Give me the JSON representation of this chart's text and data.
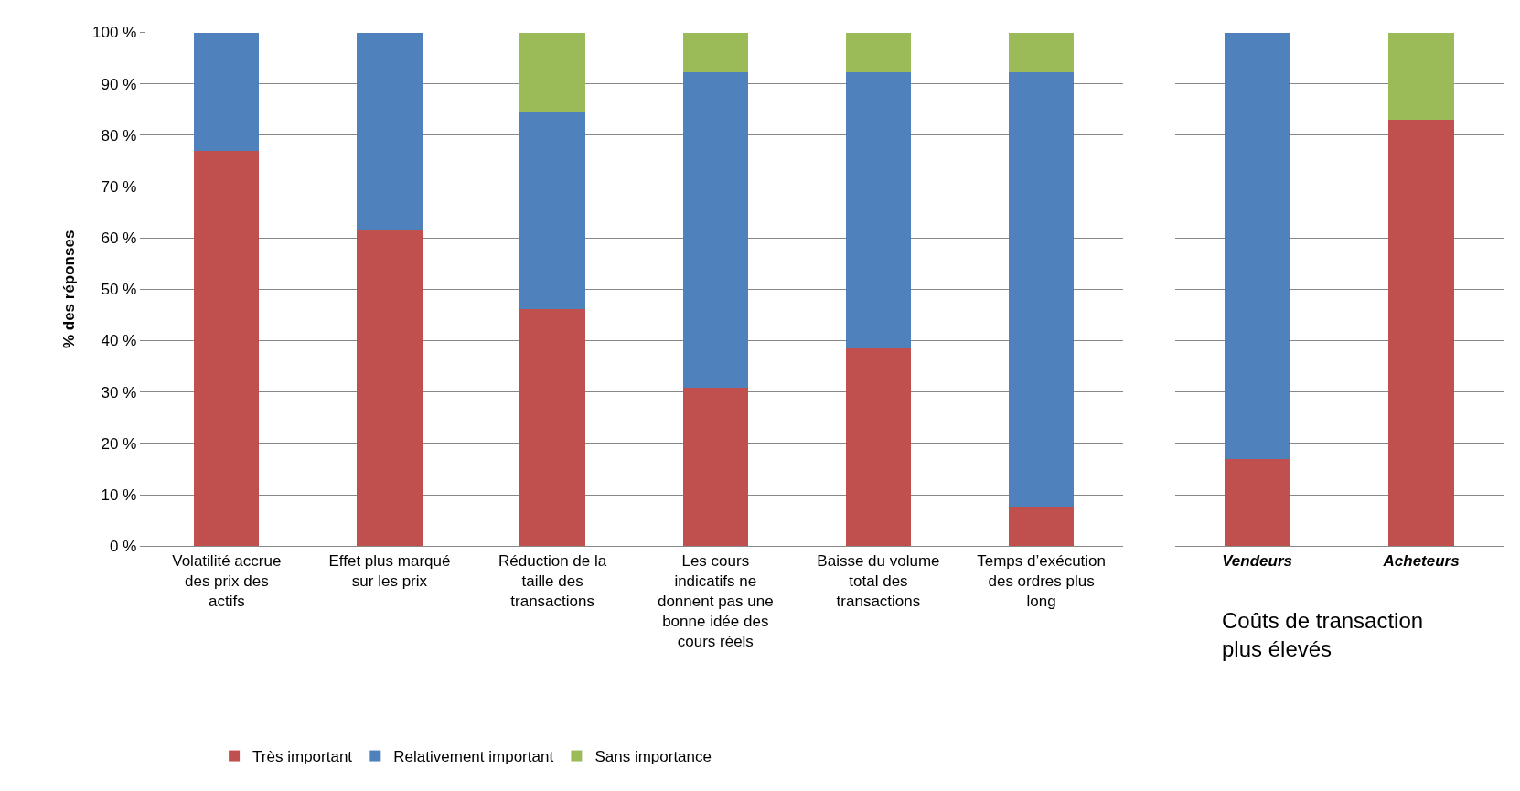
{
  "chart_data": [
    {
      "type": "bar",
      "stacked": true,
      "ylabel": "% des réponses",
      "categories": [
        "Volatilité accrue des prix des actifs",
        "Effet plus marqué sur les prix",
        "Réduction de la taille des transactions",
        "Les cours indicatifs ne donnent pas une bonne idée des cours réels",
        "Baisse du volume total des transactions",
        "Temps d’exécution des ordres plus long"
      ],
      "series": [
        {
          "name": "Très important",
          "color": "#c0504d",
          "values": [
            76.9,
            61.5,
            46.2,
            30.8,
            38.5,
            7.7
          ]
        },
        {
          "name": "Relativement important",
          "color": "#4f81bd",
          "values": [
            23.1,
            38.5,
            38.4,
            61.5,
            53.8,
            84.6
          ]
        },
        {
          "name": "Sans importance",
          "color": "#9bbb59",
          "values": [
            0,
            0,
            15.4,
            7.7,
            7.7,
            7.7
          ]
        }
      ],
      "ylim": [
        0,
        100
      ],
      "yticks": [
        {
          "value": 0,
          "label": "0 %"
        },
        {
          "value": 10,
          "label": "10 %"
        },
        {
          "value": 20,
          "label": "20 %"
        },
        {
          "value": 30,
          "label": "30 %"
        },
        {
          "value": 40,
          "label": "40 %"
        },
        {
          "value": 50,
          "label": "50 %"
        },
        {
          "value": 60,
          "label": "60 %"
        },
        {
          "value": 70,
          "label": "70 %"
        },
        {
          "value": 80,
          "label": "80 %"
        },
        {
          "value": 90,
          "label": "90 %"
        },
        {
          "value": 100,
          "label": "100 %"
        }
      ],
      "grid": "y",
      "legend": "bottom"
    },
    {
      "type": "bar",
      "stacked": true,
      "xlabel": "Coûts de transaction plus élevés",
      "categories": [
        "Vendeurs",
        "Acheteurs"
      ],
      "series": [
        {
          "color": "#c0504d",
          "values": [
            17,
            83
          ]
        },
        {
          "color": "#4f81bd",
          "values": [
            83,
            0
          ]
        },
        {
          "color": "#9bbb59",
          "values": [
            0,
            17
          ]
        }
      ],
      "ylim": [
        0,
        100
      ],
      "yticks": [
        {
          "value": 0,
          "label": null
        },
        {
          "value": 10,
          "label": null
        },
        {
          "value": 20,
          "label": null
        },
        {
          "value": 30,
          "label": null
        },
        {
          "value": 40,
          "label": null
        },
        {
          "value": 50,
          "label": null
        },
        {
          "value": 60,
          "label": null
        },
        {
          "value": 70,
          "label": null
        },
        {
          "value": 80,
          "label": null
        },
        {
          "value": 90,
          "label": null
        },
        {
          "value": 100,
          "label": null
        }
      ],
      "grid": "y",
      "tick_labels": "x"
    }
  ]
}
